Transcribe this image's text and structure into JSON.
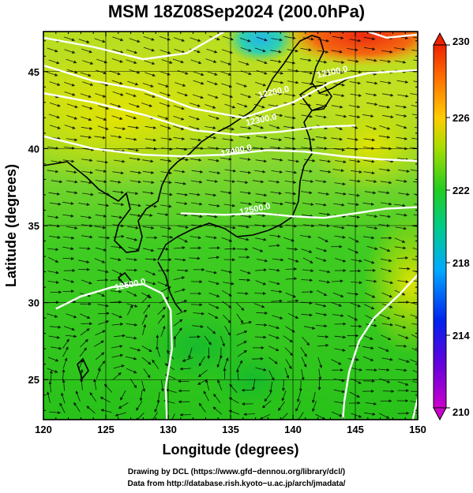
{
  "title": "MSM 18Z08Sep2024 (200.0hPa)",
  "credits": [
    "Drawing by DCL (https://www.gfd−dennou.org/library/dcl/)",
    "Data from http://database.rish.kyoto−u.ac.jp/arch/jmadata/"
  ],
  "chart_data": {
    "type": "heatmap",
    "title": "MSM 18Z08Sep2024 (200.0hPa)",
    "xlabel": "Longitude (degrees)",
    "ylabel": "Latitude  (degrees)",
    "xlim": [
      120,
      150
    ],
    "ylim": [
      22.4,
      47.6
    ],
    "x_ticks": [
      120,
      125,
      130,
      135,
      140,
      145,
      150
    ],
    "y_ticks": [
      25,
      30,
      35,
      40,
      45
    ],
    "grid": true,
    "colorbar": {
      "range": [
        210,
        230
      ],
      "ticks": [
        210,
        214,
        218,
        222,
        226,
        230
      ],
      "colors": [
        "#cc00cc",
        "#0000ee",
        "#00aaff",
        "#00cc66",
        "#22cc22",
        "#ccdd00",
        "#ffcc00",
        "#ff8800",
        "#ee2200"
      ]
    },
    "contours": [
      {
        "label": "12100.0",
        "x": 143.2,
        "y": 44.8
      },
      {
        "label": "12200.0",
        "x": 138.5,
        "y": 43.5
      },
      {
        "label": "12300.0",
        "x": 137.5,
        "y": 41.7
      },
      {
        "label": "12400.0",
        "x": 135.5,
        "y": 39.7
      },
      {
        "label": "12500.0",
        "x": 137.0,
        "y": 35.9
      },
      {
        "label": "12500.0",
        "x": 127.0,
        "y": 31.0
      }
    ],
    "contour_lines": [
      [
        [
          120,
          47.2
        ],
        [
          124,
          46.6
        ],
        [
          128,
          45.8
        ],
        [
          131.5,
          46.2
        ],
        [
          134.5,
          47.6
        ]
      ],
      [
        [
          146,
          47.6
        ],
        [
          147.5,
          47.2
        ],
        [
          150,
          47.4
        ]
      ],
      [
        [
          120,
          45.4
        ],
        [
          124,
          44.4
        ],
        [
          128,
          43.8
        ],
        [
          132,
          42.6
        ],
        [
          136,
          42.0
        ],
        [
          140,
          43.0
        ],
        [
          143,
          44.3
        ],
        [
          146,
          44.9
        ],
        [
          150,
          45.1
        ]
      ],
      [
        [
          120,
          43.6
        ],
        [
          124,
          43.0
        ],
        [
          128,
          42.2
        ],
        [
          132,
          41.2
        ],
        [
          135.5,
          40.9
        ],
        [
          139,
          41.1
        ],
        [
          142,
          41.4
        ],
        [
          145,
          41.5
        ]
      ],
      [
        [
          120,
          40.8
        ],
        [
          124,
          40.0
        ],
        [
          128,
          39.6
        ],
        [
          131,
          39.5
        ],
        [
          134.5,
          39.6
        ],
        [
          138,
          39.9
        ],
        [
          141,
          39.8
        ],
        [
          144,
          39.5
        ],
        [
          147,
          39.3
        ],
        [
          150,
          39.2
        ]
      ],
      [
        [
          131,
          35.8
        ],
        [
          134.5,
          35.7
        ],
        [
          137.5,
          35.8
        ],
        [
          140,
          35.6
        ],
        [
          142.5,
          35.5
        ],
        [
          145,
          35.8
        ],
        [
          147.5,
          36.1
        ],
        [
          150,
          36.2
        ]
      ],
      [
        [
          121,
          29.6
        ],
        [
          123,
          30.4
        ],
        [
          125.5,
          31.0
        ],
        [
          128,
          31.2
        ],
        [
          129.5,
          30.6
        ],
        [
          130.2,
          29.5
        ],
        [
          130.3,
          27.0
        ],
        [
          129.8,
          24.5
        ],
        [
          129.9,
          22.4
        ]
      ],
      [
        [
          150,
          31.8
        ],
        [
          148.5,
          30.5
        ],
        [
          146.5,
          29.0
        ],
        [
          145.3,
          27.5
        ],
        [
          144.5,
          25.5
        ],
        [
          144.1,
          23.5
        ],
        [
          144.0,
          22.4
        ]
      ],
      [
        [
          150,
          23.8
        ],
        [
          149.6,
          22.4
        ]
      ]
    ]
  }
}
